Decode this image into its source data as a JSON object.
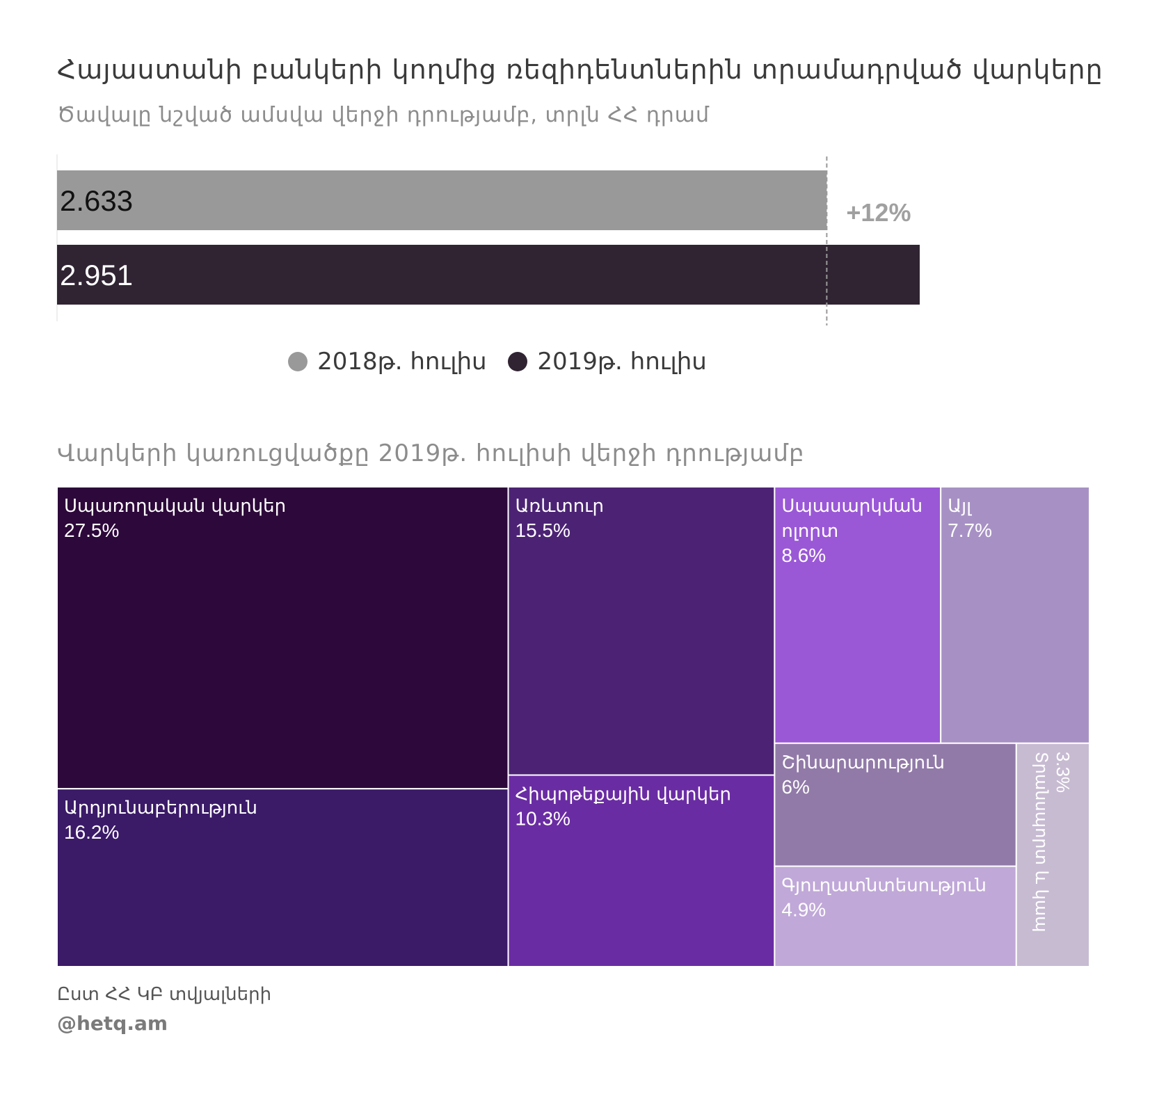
{
  "header": {
    "title": "Հայաստանի բանկերի կողմից ռեզիդենտներին տրամադրված վարկերը",
    "subtitle": "Ծավալը նշված ամսվա վերջի դրությամբ, տրլն ՀՀ դրամ"
  },
  "chart_data": [
    {
      "type": "bar",
      "orientation": "horizontal",
      "series": [
        {
          "name": "2018թ. հուլիս",
          "value": 2.633,
          "label": "2.633",
          "color": "#999999"
        },
        {
          "name": "2019թ. հուլիս",
          "value": 2.951,
          "label": "2.951",
          "color": "#302433"
        }
      ],
      "annotation": "+12%",
      "xlim": [
        0,
        3.0
      ]
    },
    {
      "type": "treemap",
      "title": "Վարկերի  կառուցվածքը 2019թ. հուլիսի վերջի դրությամբ",
      "items": [
        {
          "name": "Սպառողական վարկեր",
          "value": 27.5,
          "label": "27.5%",
          "color": "#2d083a"
        },
        {
          "name": "Արդյունաբերություն",
          "value": 16.2,
          "label": "16.2%",
          "color": "#3b1a68"
        },
        {
          "name": "Առևտուր",
          "value": 15.5,
          "label": "15.5%",
          "color": "#4c2374"
        },
        {
          "name": "Հիպոթեքային վարկեր",
          "value": 10.3,
          "label": "10.3%",
          "color": "#6a2ca3"
        },
        {
          "name": "Սպասարկման ոլորտ",
          "value": 8.6,
          "label": "8.6%",
          "color": "#9a58d6"
        },
        {
          "name": "Այլ",
          "value": 7.7,
          "label": "7.7%",
          "color": "#a791c4"
        },
        {
          "name": "Շինարարություն",
          "value": 6,
          "label": "6%",
          "color": "#917aa8"
        },
        {
          "name": "Գյուղատնտեսություն",
          "value": 4.9,
          "label": "4.9%",
          "color": "#c0a8d8"
        },
        {
          "name": "Տրանսպորտ և կապ",
          "value": 3.3,
          "label": "3.3%",
          "color": "#c7bbd2"
        }
      ]
    }
  ],
  "legend": {
    "items": [
      {
        "label": "2018թ. հուլիս",
        "color": "#999999"
      },
      {
        "label": "2019թ. հուլիս",
        "color": "#302433"
      }
    ]
  },
  "footer": {
    "source": "Ըստ ՀՀ ԿԲ տվյալների",
    "credit": "@hetq.am"
  }
}
